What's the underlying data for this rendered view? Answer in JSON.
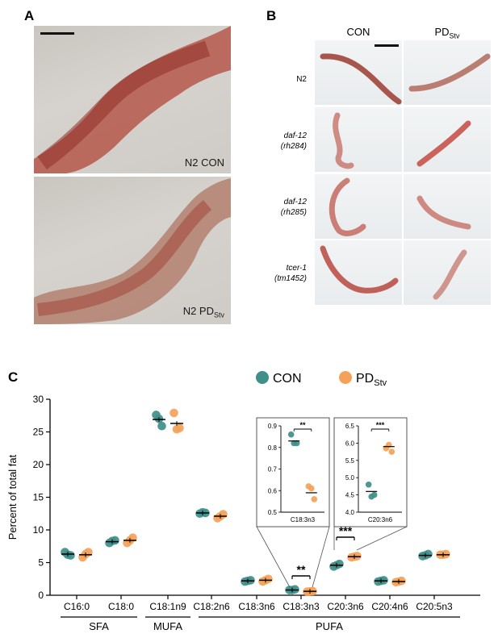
{
  "panel_a": {
    "letter": "A",
    "top_label": "N2 CON",
    "bottom_label_main": "N2 PD",
    "bottom_label_sub": "Stv"
  },
  "panel_b": {
    "letter": "B",
    "col_con": "CON",
    "col_pd_main": "PD",
    "col_pd_sub": "Stv",
    "rows": [
      {
        "line1": "N2",
        "line2": ""
      },
      {
        "line1": "daf-12",
        "line2": "(rh284)"
      },
      {
        "line1": "daf-12",
        "line2": "(rh285)"
      },
      {
        "line1": "tcer-1",
        "line2": "(tm1452)"
      }
    ]
  },
  "panel_c": {
    "letter": "C",
    "legend": {
      "con": "CON",
      "pd_main": "PD",
      "pd_sub": "Stv"
    },
    "groups": [
      "SFA",
      "MUFA",
      "PUFA"
    ],
    "colors": {
      "con": "#3f8f8a",
      "pd": "#f4a25a"
    }
  },
  "chart_data": [
    {
      "type": "scatter",
      "ylabel": "Percent of total fat",
      "ylim": [
        0,
        30
      ],
      "yticks": [
        "0",
        "5",
        "10",
        "15",
        "20",
        "25",
        "30"
      ],
      "categories": [
        "C16:0",
        "C18:0",
        "C18:1n9",
        "C18:2n6",
        "C18:3n6",
        "C18:3n3",
        "C20:3n6",
        "C20:4n6",
        "C20:5n3"
      ],
      "series": [
        {
          "name": "CON",
          "values": [
            6.3,
            8.2,
            26.9,
            12.6,
            2.2,
            0.8,
            4.6,
            2.2,
            6.1
          ],
          "points": [
            [
              6.6,
              6.2,
              6.1
            ],
            [
              8.0,
              8.3,
              8.4
            ],
            [
              27.6,
              27.0,
              25.9
            ],
            [
              12.5,
              12.7,
              12.6
            ],
            [
              2.1,
              2.2,
              2.3
            ],
            [
              0.8,
              0.8,
              0.9
            ],
            [
              4.4,
              4.6,
              4.8
            ],
            [
              2.1,
              2.2,
              2.3
            ],
            [
              6.0,
              6.1,
              6.3
            ]
          ]
        },
        {
          "name": "PD",
          "values": [
            6.2,
            8.4,
            26.3,
            12.1,
            2.3,
            0.6,
            5.9,
            2.1,
            6.2
          ],
          "points": [
            [
              5.8,
              6.3,
              6.6
            ],
            [
              8.0,
              8.4,
              8.8
            ],
            [
              27.9,
              25.4,
              25.6
            ],
            [
              11.8,
              12.1,
              12.4
            ],
            [
              2.1,
              2.3,
              2.5
            ],
            [
              0.55,
              0.6,
              0.62
            ],
            [
              5.8,
              5.9,
              6.0
            ],
            [
              2.0,
              2.1,
              2.2
            ],
            [
              6.2,
              6.2,
              6.3
            ]
          ]
        }
      ],
      "annotations": [
        "**",
        "***"
      ]
    },
    {
      "type": "scatter",
      "xlabel": "C18:3n3",
      "ylim": [
        0.5,
        0.9
      ],
      "yticks": [
        "0.5",
        "0.6",
        "0.7",
        "0.8",
        "0.9"
      ],
      "series": [
        {
          "name": "CON",
          "values": [
            0.83
          ],
          "points": [
            0.86,
            0.82,
            0.82
          ]
        },
        {
          "name": "PD",
          "values": [
            0.59
          ],
          "points": [
            0.62,
            0.61,
            0.56
          ]
        }
      ],
      "annotations": [
        "**"
      ]
    },
    {
      "type": "scatter",
      "xlabel": "C20:3n6",
      "ylim": [
        4.0,
        6.5
      ],
      "yticks": [
        "4.0",
        "4.5",
        "5.0",
        "5.5",
        "6.0",
        "6.5"
      ],
      "series": [
        {
          "name": "CON",
          "values": [
            4.6
          ],
          "points": [
            4.8,
            4.45,
            4.5
          ]
        },
        {
          "name": "PD",
          "values": [
            5.9
          ],
          "points": [
            5.85,
            5.95,
            5.75
          ]
        }
      ],
      "annotations": [
        "***"
      ]
    }
  ]
}
